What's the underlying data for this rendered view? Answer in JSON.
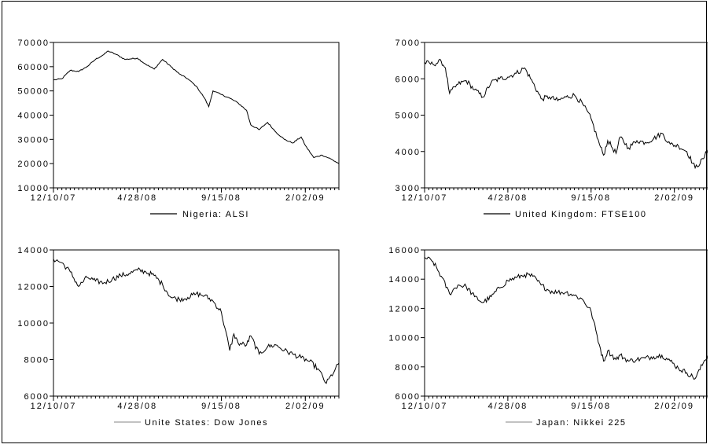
{
  "chart_data": [
    {
      "type": "line",
      "ylim": [
        10000,
        70000
      ],
      "yticks": [
        10000,
        20000,
        30000,
        40000,
        50000,
        60000,
        70000
      ],
      "tick_labels": [
        "12/10/07",
        "4/28/08",
        "9/15/08",
        "2/02/09"
      ],
      "series": [
        {
          "name": "Nigeria: ALSI",
          "color": "#000000",
          "x": [
            "12/10/07",
            "12/24/07",
            "1/07/08",
            "1/21/08",
            "2/04/08",
            "2/18/08",
            "3/03/08",
            "3/10/08",
            "3/24/08",
            "4/07/08",
            "4/28/08",
            "5/12/08",
            "5/26/08",
            "6/09/08",
            "6/23/08",
            "7/07/08",
            "7/21/08",
            "8/04/08",
            "8/18/08",
            "8/25/08",
            "9/01/08",
            "9/15/08",
            "9/29/08",
            "10/13/08",
            "10/27/08",
            "11/03/08",
            "11/17/08",
            "12/01/08",
            "12/15/08",
            "12/29/08",
            "1/12/09",
            "1/26/09",
            "2/02/09",
            "2/16/09",
            "3/02/09",
            "3/16/09",
            "3/30/09"
          ],
          "values": [
            54500,
            55000,
            58500,
            58000,
            60000,
            63000,
            65000,
            66500,
            65000,
            63000,
            63500,
            61000,
            59000,
            63000,
            60000,
            57000,
            55000,
            52000,
            47000,
            43500,
            50000,
            48500,
            47000,
            45000,
            42000,
            36000,
            34000,
            37000,
            33000,
            30000,
            28500,
            31000,
            27500,
            22500,
            23500,
            22000,
            20000
          ]
        }
      ]
    },
    {
      "type": "line",
      "ylim": [
        3000,
        7000
      ],
      "yticks": [
        3000,
        4000,
        5000,
        6000,
        7000
      ],
      "tick_labels": [
        "12/10/07",
        "4/28/08",
        "9/15/08",
        "2/02/09"
      ],
      "series": [
        {
          "name": "United Kingdom: FTSE100",
          "color": "#000000",
          "x": [
            "12/10/07",
            "12/24/07",
            "1/07/08",
            "1/14/08",
            "1/21/08",
            "2/04/08",
            "2/18/08",
            "3/03/08",
            "3/17/08",
            "3/31/08",
            "4/14/08",
            "4/28/08",
            "5/12/08",
            "5/26/08",
            "6/09/08",
            "6/23/08",
            "7/07/08",
            "7/21/08",
            "8/04/08",
            "8/18/08",
            "9/01/08",
            "9/15/08",
            "9/29/08",
            "10/06/08",
            "10/13/08",
            "10/27/08",
            "11/03/08",
            "11/17/08",
            "12/01/08",
            "12/15/08",
            "12/29/08",
            "1/12/09",
            "1/26/09",
            "2/09/09",
            "2/23/09",
            "3/09/09",
            "3/23/09",
            "3/30/09"
          ],
          "values": [
            6450,
            6400,
            6480,
            6300,
            5600,
            5850,
            5950,
            5700,
            5500,
            5900,
            6000,
            6050,
            6150,
            6300,
            5900,
            5450,
            5500,
            5400,
            5500,
            5550,
            5300,
            4900,
            4200,
            3900,
            4300,
            3950,
            4400,
            4100,
            4300,
            4250,
            4350,
            4500,
            4200,
            4150,
            4000,
            3550,
            3800,
            4050
          ]
        }
      ]
    },
    {
      "type": "line",
      "ylim": [
        6000,
        14000
      ],
      "yticks": [
        6000,
        8000,
        10000,
        12000,
        14000
      ],
      "tick_labels": [
        "12/10/07",
        "4/28/08",
        "9/15/08",
        "2/02/09"
      ],
      "series": [
        {
          "name": "Unite States: Dow Jones",
          "color": "#9e9e9e",
          "x": [
            "12/10/07",
            "12/24/07",
            "1/07/08",
            "1/21/08",
            "2/04/08",
            "2/18/08",
            "3/03/08",
            "3/17/08",
            "3/31/08",
            "4/14/08",
            "4/28/08",
            "5/12/08",
            "5/26/08",
            "6/09/08",
            "6/23/08",
            "7/07/08",
            "7/21/08",
            "8/04/08",
            "8/18/08",
            "9/01/08",
            "9/15/08",
            "9/29/08",
            "10/06/08",
            "10/13/08",
            "10/27/08",
            "11/03/08",
            "11/17/08",
            "12/01/08",
            "12/15/08",
            "12/29/08",
            "1/12/09",
            "1/26/09",
            "2/09/09",
            "2/23/09",
            "3/09/09",
            "3/23/09",
            "3/30/09"
          ],
          "values": [
            13500,
            13300,
            12800,
            12000,
            12500,
            12300,
            12200,
            12400,
            12600,
            12700,
            12900,
            12800,
            12600,
            12100,
            11400,
            11300,
            11400,
            11600,
            11500,
            11200,
            10600,
            8500,
            9400,
            8900,
            8800,
            9300,
            8300,
            8700,
            8800,
            8500,
            8300,
            8100,
            7900,
            7500,
            6700,
            7400,
            7800
          ]
        }
      ]
    },
    {
      "type": "line",
      "ylim": [
        6000,
        16000
      ],
      "yticks": [
        6000,
        8000,
        10000,
        12000,
        14000,
        16000
      ],
      "tick_labels": [
        "12/10/07",
        "4/28/08",
        "9/15/08",
        "2/02/09"
      ],
      "series": [
        {
          "name": "Japan: Nikkei 225",
          "color": "#9e9e9e",
          "x": [
            "12/10/07",
            "12/24/07",
            "1/07/08",
            "1/21/08",
            "2/04/08",
            "2/18/08",
            "3/03/08",
            "3/17/08",
            "3/31/08",
            "4/14/08",
            "4/28/08",
            "5/12/08",
            "5/26/08",
            "6/09/08",
            "6/23/08",
            "7/07/08",
            "7/21/08",
            "8/04/08",
            "8/18/08",
            "9/01/08",
            "9/15/08",
            "9/29/08",
            "10/06/08",
            "10/13/08",
            "10/27/08",
            "11/03/08",
            "11/17/08",
            "12/01/08",
            "12/15/08",
            "12/29/08",
            "1/12/09",
            "1/26/09",
            "2/09/09",
            "2/23/09",
            "3/09/09",
            "3/23/09",
            "3/30/09"
          ],
          "values": [
            15500,
            15200,
            14200,
            13000,
            13600,
            13500,
            12800,
            12400,
            12800,
            13400,
            13900,
            14100,
            14300,
            14200,
            13600,
            13200,
            13100,
            13100,
            12900,
            12600,
            11800,
            9500,
            8400,
            9100,
            8500,
            8800,
            8400,
            8500,
            8600,
            8700,
            8800,
            8400,
            7900,
            7600,
            7200,
            8300,
            8800
          ]
        }
      ]
    }
  ]
}
